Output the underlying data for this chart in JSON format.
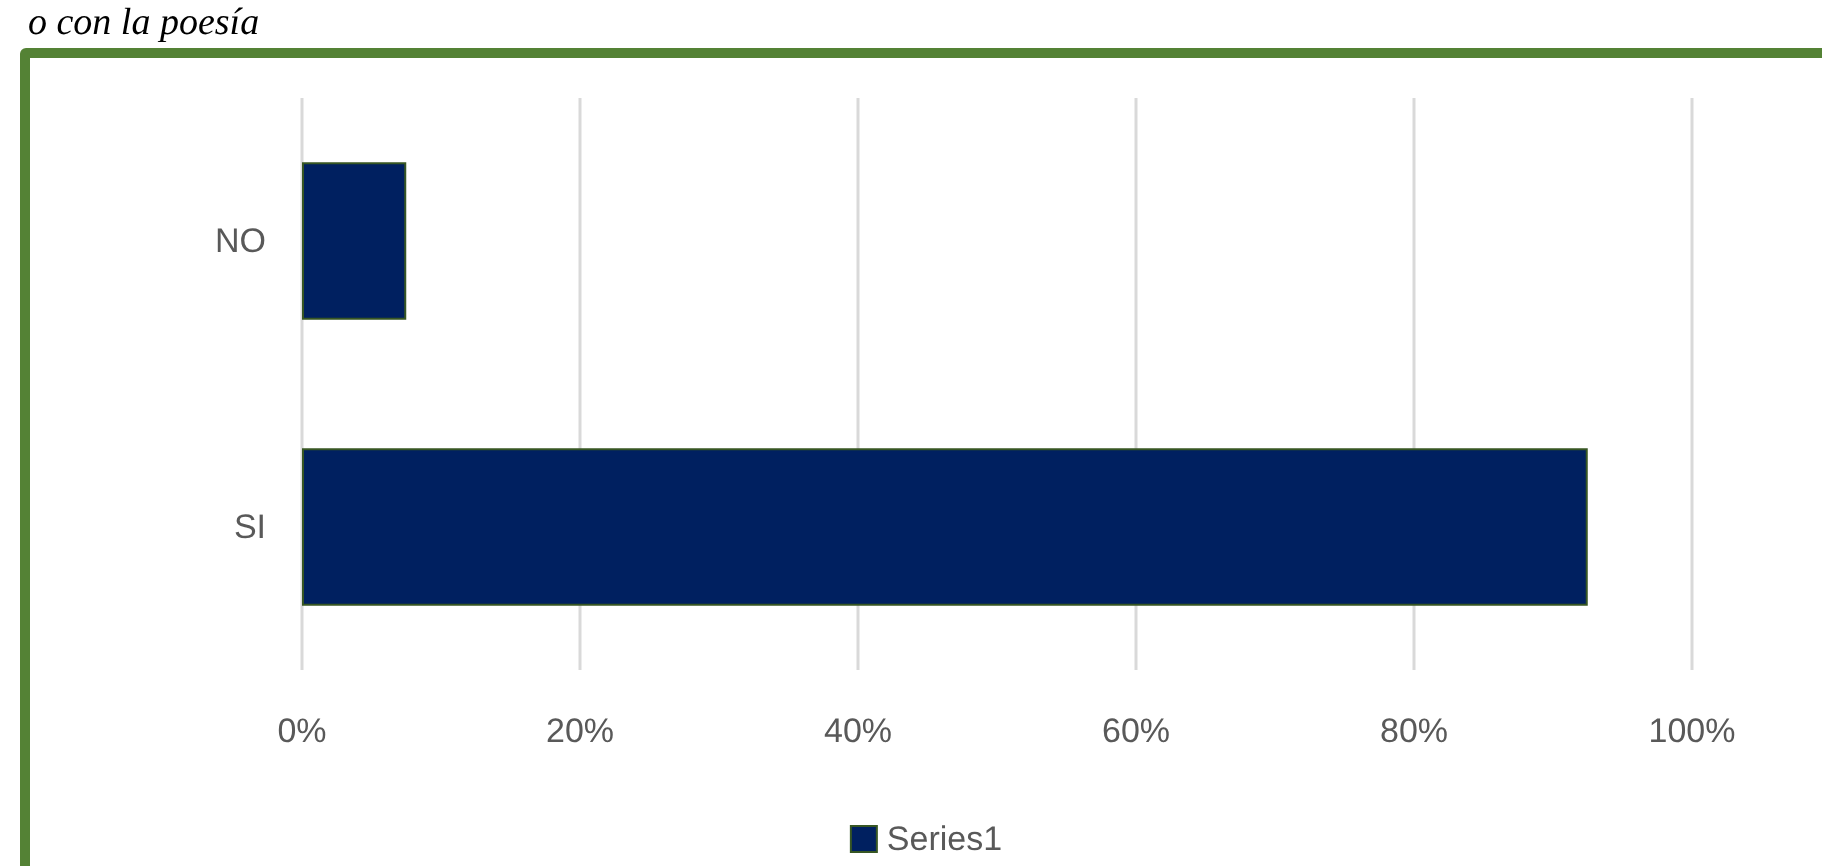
{
  "chart_data": {
    "type": "bar",
    "orientation": "horizontal",
    "title": "o con la poesía",
    "categories": [
      "NO",
      "SI"
    ],
    "series": [
      {
        "name": "Series1",
        "color": "#002060",
        "values": [
          7.5,
          92.5
        ]
      }
    ],
    "xlim": [
      0,
      100
    ],
    "xticks": [
      {
        "value": 0,
        "label": "0%"
      },
      {
        "value": 20,
        "label": "20%"
      },
      {
        "value": 40,
        "label": "40%"
      },
      {
        "value": 60,
        "label": "60%"
      },
      {
        "value": 80,
        "label": "80%"
      },
      {
        "value": 100,
        "label": "100%"
      }
    ],
    "grid": "x",
    "legend": "bottom"
  }
}
